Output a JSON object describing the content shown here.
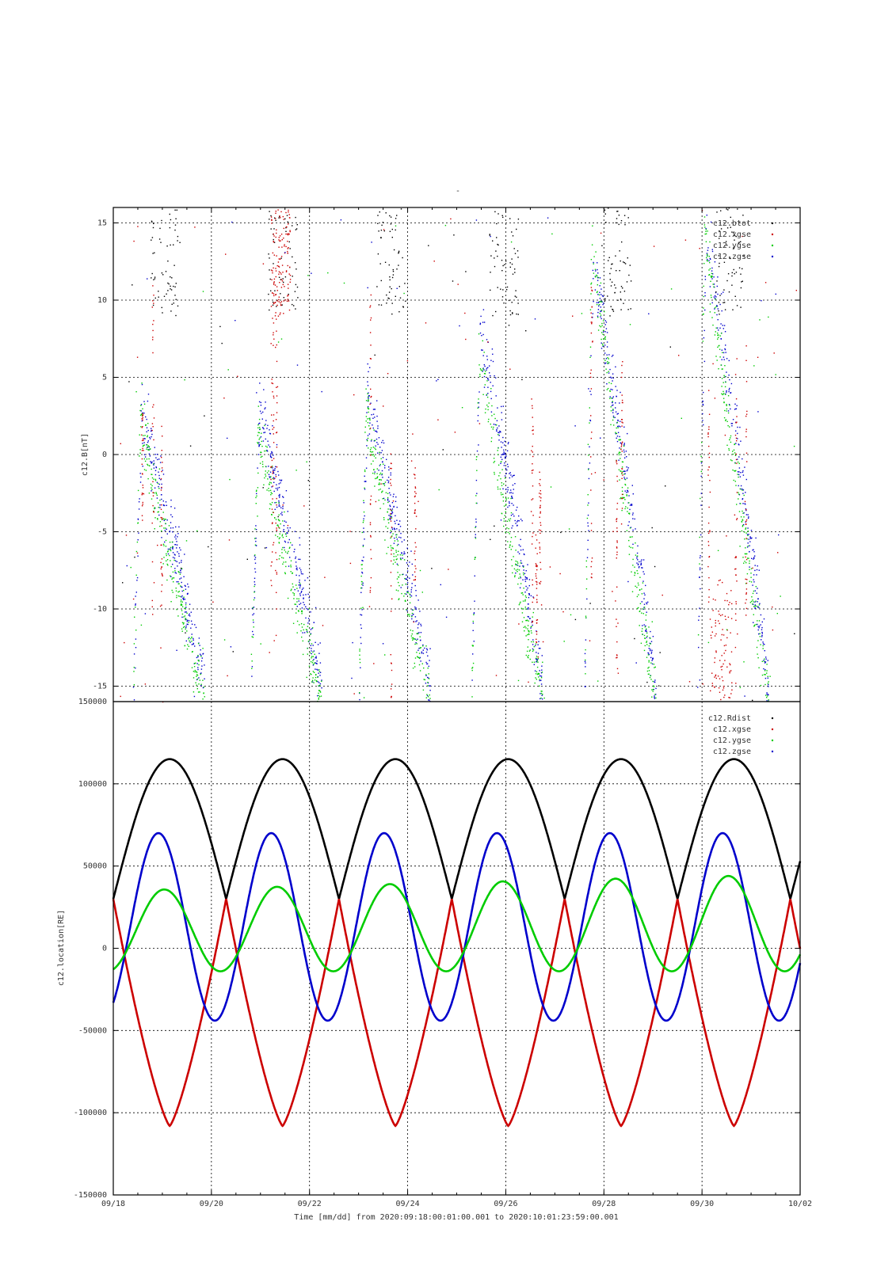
{
  "page_title": "-",
  "xlabel": "Time [mm/dd]  from 2020:09:18:00:01:00.001  to  2020:10:01:23:59:00.001",
  "x_ticks": [
    "09/18",
    "09/20",
    "09/22",
    "09/24",
    "09/26",
    "09/28",
    "09/30",
    "10/02"
  ],
  "colors": {
    "black": "#000000",
    "red": "#cc0000",
    "green": "#00cc00",
    "blue": "#0000cc"
  },
  "chart_data": [
    {
      "type": "scatter",
      "ylabel": "c12.B[nT]",
      "xlim": [
        "09/18",
        "10/02"
      ],
      "ylim": [
        -16,
        16
      ],
      "y_ticks": [
        15,
        10,
        5,
        0,
        -5,
        -10,
        -15
      ],
      "grid": true,
      "legend_position": "top-right",
      "series": [
        {
          "name": "c12.btot",
          "color": "black",
          "description_of_activity": "mostly above +10 nT near passes"
        },
        {
          "name": "c12.xgse",
          "color": "red"
        },
        {
          "name": "c12.ygse",
          "color": "green"
        },
        {
          "name": "c12.zgse",
          "color": "blue"
        }
      ],
      "pass_days": [
        0.4,
        2.8,
        5.0,
        7.3,
        9.6,
        11.9
      ],
      "pass_days_units": "days after 09/18"
    },
    {
      "type": "line",
      "ylabel": "c12.location[RE]",
      "xlim": [
        "09/18",
        "10/02"
      ],
      "ylim": [
        -150000,
        150000
      ],
      "y_ticks": [
        150000,
        100000,
        50000,
        0,
        -50000,
        -100000,
        -150000
      ],
      "grid": true,
      "legend_position": "top-right",
      "series": [
        {
          "name": "c12.Rdist",
          "color": "black",
          "peak": 115000,
          "trough": 30000
        },
        {
          "name": "c12.xgse",
          "color": "red",
          "peak": 30000,
          "trough": -108000
        },
        {
          "name": "c12.ygse",
          "color": "green",
          "peak": 45000,
          "trough": -14000
        },
        {
          "name": "c12.zgse",
          "color": "blue",
          "peak": 70000,
          "trough": -44000
        }
      ]
    }
  ]
}
